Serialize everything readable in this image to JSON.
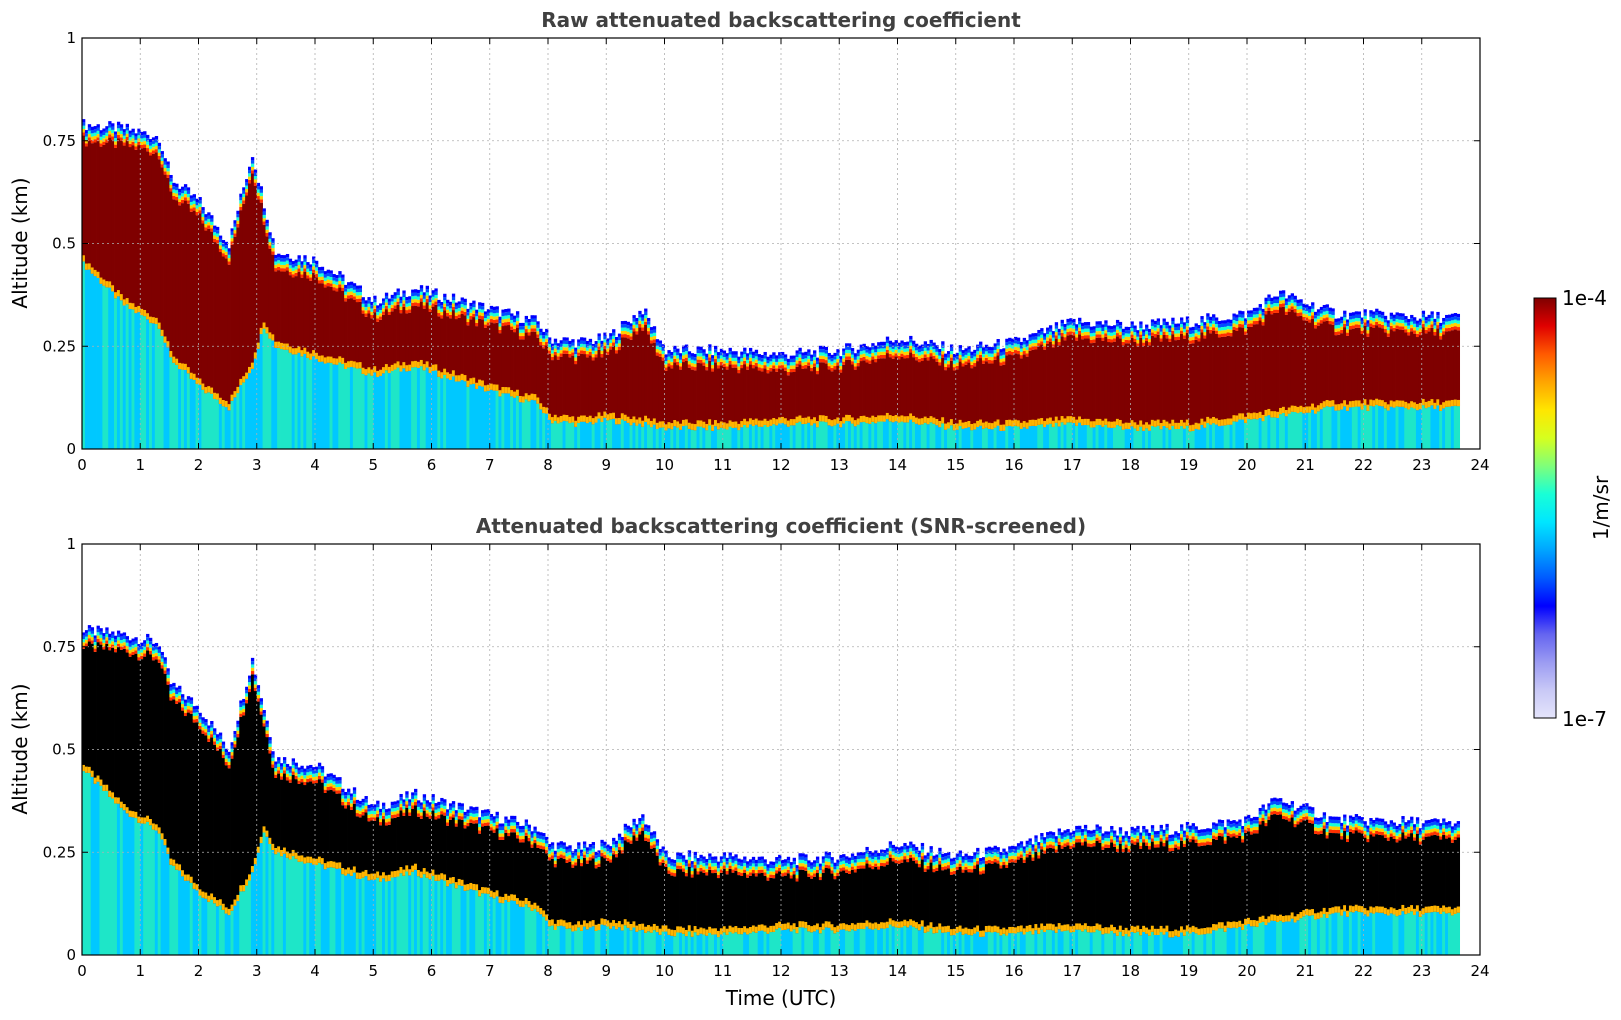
{
  "chart_data": [
    {
      "type": "heatmap",
      "title": "Raw attenuated backscattering coefficient",
      "xlabel": "",
      "ylabel": "Altitude (km)",
      "xlim": [
        0,
        24
      ],
      "ylim": [
        0,
        1
      ],
      "x_ticks": [
        "0",
        "1",
        "2",
        "3",
        "4",
        "5",
        "6",
        "7",
        "8",
        "9",
        "10",
        "11",
        "12",
        "13",
        "14",
        "15",
        "16",
        "17",
        "18",
        "19",
        "20",
        "21",
        "22",
        "23",
        "24"
      ],
      "y_ticks": [
        "0",
        "0.25",
        "0.5",
        "0.75",
        "1"
      ],
      "grid": true,
      "saturation_color": "#7f0000",
      "data_end_time": 23.65,
      "layer_profile": {
        "time": [
          0,
          0.7,
          1.3,
          1.5,
          2.0,
          2.5,
          2.9,
          3.1,
          3.3,
          4.0,
          5.0,
          5.7,
          7.0,
          7.8,
          8.0,
          8.5,
          9.0,
          9.6,
          10.0,
          11.0,
          12.0,
          13.0,
          14.0,
          15.0,
          16.0,
          17.0,
          18.0,
          19.0,
          20.0,
          20.5,
          21.5,
          23.6
        ],
        "cloud_top_km": [
          0.79,
          0.78,
          0.76,
          0.66,
          0.6,
          0.5,
          0.72,
          0.6,
          0.48,
          0.46,
          0.36,
          0.39,
          0.34,
          0.31,
          0.27,
          0.26,
          0.27,
          0.34,
          0.24,
          0.24,
          0.23,
          0.24,
          0.27,
          0.24,
          0.26,
          0.31,
          0.3,
          0.31,
          0.33,
          0.38,
          0.33,
          0.32
        ],
        "cloud_base_km": [
          0.45,
          0.35,
          0.3,
          0.22,
          0.15,
          0.1,
          0.2,
          0.3,
          0.25,
          0.22,
          0.18,
          0.2,
          0.14,
          0.11,
          0.07,
          0.06,
          0.07,
          0.06,
          0.05,
          0.05,
          0.06,
          0.06,
          0.07,
          0.05,
          0.05,
          0.06,
          0.05,
          0.05,
          0.07,
          0.08,
          0.1,
          0.1
        ]
      }
    },
    {
      "type": "heatmap",
      "title": "Attenuated backscattering coefficient (SNR-screened)",
      "xlabel": "Time (UTC)",
      "ylabel": "Altitude (km)",
      "xlim": [
        0,
        24
      ],
      "ylim": [
        0,
        1
      ],
      "x_ticks": [
        "0",
        "1",
        "2",
        "3",
        "4",
        "5",
        "6",
        "7",
        "8",
        "9",
        "10",
        "11",
        "12",
        "13",
        "14",
        "15",
        "16",
        "17",
        "18",
        "19",
        "20",
        "21",
        "22",
        "23",
        "24"
      ],
      "y_ticks": [
        "0",
        "0.25",
        "0.5",
        "0.75",
        "1"
      ],
      "grid": true,
      "saturation_color": "#000000",
      "data_end_time": 23.65
    }
  ],
  "colorbar": {
    "label": "1/m/sr",
    "max_label": "1e-4",
    "min_label": "1e-7",
    "colors": [
      "#e4e4fb",
      "#c8c8f6",
      "#9b9bf2",
      "#6464f0",
      "#0000ff",
      "#005aff",
      "#00a5ff",
      "#00e6ff",
      "#19ffd6",
      "#7fff7a",
      "#d6ff1f",
      "#ffe600",
      "#ffa500",
      "#ff5a00",
      "#e00000",
      "#7f0000"
    ]
  }
}
